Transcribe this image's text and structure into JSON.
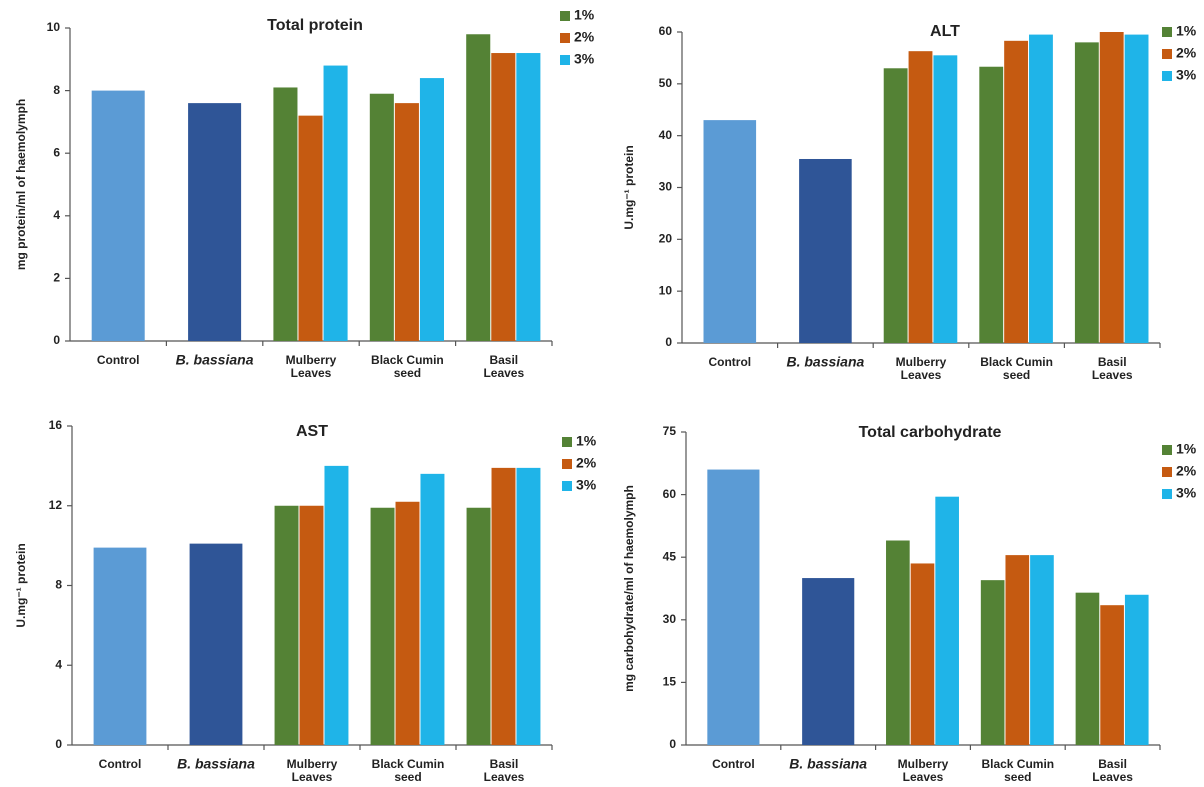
{
  "chart_data": [
    {
      "type": "bar",
      "title": "Total protein",
      "y_label": "mg protein/ml  of haemolymph",
      "categories": [
        "Control",
        "B. bassiana",
        "Mulberry\nLeaves",
        "Black Cumin\nseed",
        "Basil\nLeaves"
      ],
      "values": [
        8.0,
        7.6,
        null,
        null,
        null
      ],
      "colors": [
        "#5b9bd5",
        "#2f5597",
        null,
        null,
        null
      ],
      "series": [
        {
          "name": "1%",
          "color": "#548235",
          "values": [
            null,
            null,
            8.1,
            7.9,
            9.8
          ]
        },
        {
          "name": "2%",
          "color": "#c55a11",
          "values": [
            null,
            null,
            7.2,
            7.6,
            9.2
          ]
        },
        {
          "name": "3%",
          "color": "#1fb4e8",
          "values": [
            null,
            null,
            8.8,
            8.4,
            9.2
          ]
        }
      ],
      "ylim": [
        0,
        10
      ],
      "yticks": [
        0,
        2,
        4,
        6,
        8,
        10
      ]
    },
    {
      "type": "bar",
      "title": "ALT",
      "y_label": "U.mg⁻¹ protein",
      "categories": [
        "Control",
        "B. bassiana",
        "Mulberry\nLeaves",
        "Black Cumin\nseed",
        "Basil\nLeaves"
      ],
      "values": [
        43,
        35.5,
        null,
        null,
        null
      ],
      "colors": [
        "#5b9bd5",
        "#2f5597",
        null,
        null,
        null
      ],
      "series": [
        {
          "name": "1%",
          "color": "#548235",
          "values": [
            null,
            null,
            53,
            53.3,
            58
          ]
        },
        {
          "name": "2%",
          "color": "#c55a11",
          "values": [
            null,
            null,
            56.3,
            58.3,
            60
          ]
        },
        {
          "name": "3%",
          "color": "#1fb4e8",
          "values": [
            null,
            null,
            55.5,
            59.5,
            59.5
          ]
        }
      ],
      "ylim": [
        0,
        60
      ],
      "yticks": [
        0,
        10,
        20,
        30,
        40,
        50,
        60
      ]
    },
    {
      "type": "bar",
      "title": "AST",
      "y_label": "U.mg⁻¹ protein",
      "categories": [
        "Control",
        "B. bassiana",
        "Mulberry\nLeaves",
        "Black Cumin\nseed",
        "Basil\nLeaves"
      ],
      "values": [
        9.9,
        10.1,
        null,
        null,
        null
      ],
      "colors": [
        "#5b9bd5",
        "#2f5597",
        null,
        null,
        null
      ],
      "series": [
        {
          "name": "1%",
          "color": "#548235",
          "values": [
            null,
            null,
            12,
            11.9,
            11.9
          ]
        },
        {
          "name": "2%",
          "color": "#c55a11",
          "values": [
            null,
            null,
            12,
            12.2,
            13.9
          ]
        },
        {
          "name": "3%",
          "color": "#1fb4e8",
          "values": [
            null,
            null,
            14,
            13.6,
            13.9
          ]
        }
      ],
      "ylim": [
        0,
        16
      ],
      "yticks": [
        0,
        4,
        8,
        12,
        16
      ]
    },
    {
      "type": "bar",
      "title": "Total carbohydrate",
      "y_label": "mg carbohydrate/ml of haemolymph",
      "categories": [
        "Control",
        "B. bassiana",
        "Mulberry\nLeaves",
        "Black Cumin\nseed",
        "Basil\nLeaves"
      ],
      "values": [
        66,
        40,
        null,
        null,
        null
      ],
      "colors": [
        "#5b9bd5",
        "#2f5597",
        null,
        null,
        null
      ],
      "series": [
        {
          "name": "1%",
          "color": "#548235",
          "values": [
            null,
            null,
            49,
            39.5,
            36.5
          ]
        },
        {
          "name": "2%",
          "color": "#c55a11",
          "values": [
            null,
            null,
            43.5,
            45.5,
            33.5
          ]
        },
        {
          "name": "3%",
          "color": "#1fb4e8",
          "values": [
            null,
            null,
            59.5,
            45.5,
            36
          ]
        }
      ],
      "ylim": [
        0,
        75
      ],
      "yticks": [
        0,
        15,
        30,
        45,
        60,
        75
      ]
    }
  ]
}
